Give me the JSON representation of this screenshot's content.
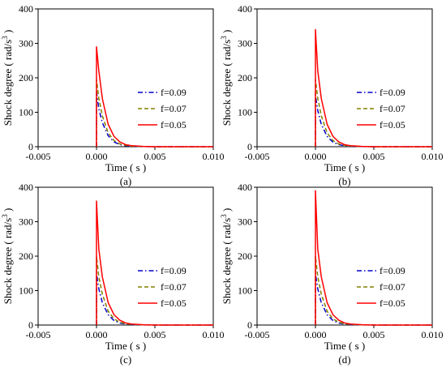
{
  "chart_data": [
    {
      "type": "line",
      "panel_label": "(a)",
      "xlabel": "Time ( s )",
      "ylabel_text": "Shock degree ( rad/s",
      "ylabel_sup": "3",
      "ylabel_close": " )",
      "xlim": [
        -0.005,
        0.01
      ],
      "ylim": [
        0,
        400
      ],
      "xticks": [
        "-0.005",
        "0.000",
        "0.005",
        "0.010"
      ],
      "xtick_values": [
        -0.005,
        0,
        0.005,
        0.01
      ],
      "yticks": [
        "0",
        "100",
        "200",
        "300",
        "400"
      ],
      "ytick_values": [
        0,
        100,
        200,
        300,
        400
      ],
      "grid": false,
      "legend_position": "center-right",
      "series": [
        {
          "name": "f=0.09",
          "color": "#0000CC",
          "style": "dashdot",
          "x": [
            0,
            0,
            0.0002,
            0.0005,
            0.001,
            0.0015,
            0.002,
            0.0025,
            0.003,
            0.004,
            0.005,
            0.01
          ],
          "y": [
            0,
            160,
            110,
            70,
            32,
            14,
            6,
            3,
            1.5,
            0.5,
            0,
            0
          ]
        },
        {
          "name": "f=0.07",
          "color": "#808000",
          "style": "dashed",
          "x": [
            0,
            0,
            0.0002,
            0.0005,
            0.001,
            0.0015,
            0.002,
            0.0025,
            0.003,
            0.004,
            0.005,
            0.01
          ],
          "y": [
            0,
            195,
            140,
            90,
            40,
            18,
            8,
            4,
            2,
            0.5,
            0,
            0
          ]
        },
        {
          "name": "f=0.05",
          "color": "#FF0000",
          "style": "solid",
          "x": [
            0,
            0,
            0.0002,
            0.0005,
            0.001,
            0.0015,
            0.002,
            0.0025,
            0.003,
            0.004,
            0.005,
            0.01
          ],
          "y": [
            0,
            290,
            220,
            140,
            65,
            30,
            14,
            6,
            3,
            1,
            0,
            0
          ]
        }
      ]
    },
    {
      "type": "line",
      "panel_label": "(b)",
      "xlabel": "Time ( s )",
      "ylabel_text": "Shock degree ( rad/s",
      "ylabel_sup": "3",
      "ylabel_close": " )",
      "xlim": [
        -0.005,
        0.01
      ],
      "ylim": [
        0,
        400
      ],
      "xticks": [
        "-0.005",
        "0.000",
        "0.005",
        "0.010"
      ],
      "xtick_values": [
        -0.005,
        0,
        0.005,
        0.01
      ],
      "yticks": [
        "0",
        "100",
        "200",
        "300",
        "400"
      ],
      "ytick_values": [
        0,
        100,
        200,
        300,
        400
      ],
      "grid": false,
      "legend_position": "center-right",
      "series": [
        {
          "name": "f=0.09",
          "color": "#0000CC",
          "style": "dashdot",
          "x": [
            0,
            0,
            0.0002,
            0.0005,
            0.001,
            0.0015,
            0.002,
            0.0025,
            0.003,
            0.004,
            0.005,
            0.01
          ],
          "y": [
            0,
            150,
            105,
            65,
            30,
            13,
            6,
            3,
            1.5,
            0.5,
            0,
            0
          ]
        },
        {
          "name": "f=0.07",
          "color": "#808000",
          "style": "dashed",
          "x": [
            0,
            0,
            0.0002,
            0.0005,
            0.001,
            0.0015,
            0.002,
            0.0025,
            0.003,
            0.004,
            0.005,
            0.01
          ],
          "y": [
            0,
            195,
            140,
            90,
            40,
            18,
            8,
            4,
            2,
            0.5,
            0,
            0
          ]
        },
        {
          "name": "f=0.05",
          "color": "#FF0000",
          "style": "solid",
          "x": [
            0,
            0,
            0.0002,
            0.0005,
            0.001,
            0.0015,
            0.002,
            0.0025,
            0.003,
            0.004,
            0.005,
            0.01
          ],
          "y": [
            0,
            340,
            220,
            140,
            65,
            30,
            14,
            6,
            3,
            1,
            0,
            0
          ]
        }
      ]
    },
    {
      "type": "line",
      "panel_label": "(c)",
      "xlabel": "Time ( s )",
      "ylabel_text": "Shock degree ( rad/s",
      "ylabel_sup": "3",
      "ylabel_close": " )",
      "xlim": [
        -0.005,
        0.01
      ],
      "ylim": [
        0,
        400
      ],
      "xticks": [
        "-0.005",
        "0.000",
        "0.005",
        "0.010"
      ],
      "xtick_values": [
        -0.005,
        0,
        0.005,
        0.01
      ],
      "yticks": [
        "0",
        "100",
        "200",
        "300",
        "400"
      ],
      "ytick_values": [
        0,
        100,
        200,
        300,
        400
      ],
      "grid": false,
      "legend_position": "center-right",
      "series": [
        {
          "name": "f=0.09",
          "color": "#0000CC",
          "style": "dashdot",
          "x": [
            0,
            0,
            0.0002,
            0.0005,
            0.001,
            0.0015,
            0.002,
            0.0025,
            0.003,
            0.004,
            0.005,
            0.01
          ],
          "y": [
            0,
            150,
            105,
            65,
            30,
            13,
            6,
            3,
            1.5,
            0.5,
            0,
            0
          ]
        },
        {
          "name": "f=0.07",
          "color": "#808000",
          "style": "dashed",
          "x": [
            0,
            0,
            0.0002,
            0.0005,
            0.001,
            0.0015,
            0.002,
            0.0025,
            0.003,
            0.004,
            0.005,
            0.01
          ],
          "y": [
            0,
            200,
            140,
            90,
            40,
            18,
            8,
            4,
            2,
            0.5,
            0,
            0
          ]
        },
        {
          "name": "f=0.05",
          "color": "#FF0000",
          "style": "solid",
          "x": [
            0,
            0,
            0.0002,
            0.0005,
            0.001,
            0.0015,
            0.002,
            0.0025,
            0.003,
            0.004,
            0.005,
            0.01
          ],
          "y": [
            0,
            360,
            220,
            140,
            65,
            30,
            14,
            6,
            3,
            1,
            0,
            0
          ]
        }
      ]
    },
    {
      "type": "line",
      "panel_label": "(d)",
      "xlabel": "Time ( s )",
      "ylabel_text": "Shock degree ( rad/s",
      "ylabel_sup": "3",
      "ylabel_close": " )",
      "xlim": [
        -0.005,
        0.01
      ],
      "ylim": [
        0,
        400
      ],
      "xticks": [
        "-0.005",
        "0.000",
        "0.005",
        "0.010"
      ],
      "xtick_values": [
        -0.005,
        0,
        0.005,
        0.01
      ],
      "yticks": [
        "0",
        "100",
        "200",
        "300",
        "400"
      ],
      "ytick_values": [
        0,
        100,
        200,
        300,
        400
      ],
      "grid": false,
      "legend_position": "center-right",
      "series": [
        {
          "name": "f=0.09",
          "color": "#0000CC",
          "style": "dashdot",
          "x": [
            0,
            0,
            0.0002,
            0.0005,
            0.001,
            0.0015,
            0.002,
            0.0025,
            0.003,
            0.004,
            0.005,
            0.01
          ],
          "y": [
            0,
            150,
            105,
            65,
            30,
            13,
            6,
            3,
            1.5,
            0.5,
            0,
            0
          ]
        },
        {
          "name": "f=0.07",
          "color": "#808000",
          "style": "dashed",
          "x": [
            0,
            0,
            0.0002,
            0.0005,
            0.001,
            0.0015,
            0.002,
            0.0025,
            0.003,
            0.004,
            0.005,
            0.01
          ],
          "y": [
            0,
            200,
            140,
            90,
            40,
            18,
            8,
            4,
            2,
            0.5,
            0,
            0
          ]
        },
        {
          "name": "f=0.05",
          "color": "#FF0000",
          "style": "solid",
          "x": [
            0,
            0,
            0.0002,
            0.0005,
            0.001,
            0.0015,
            0.002,
            0.0025,
            0.003,
            0.004,
            0.005,
            0.01
          ],
          "y": [
            0,
            390,
            220,
            140,
            65,
            30,
            14,
            6,
            3,
            1,
            0,
            0
          ]
        }
      ]
    }
  ]
}
